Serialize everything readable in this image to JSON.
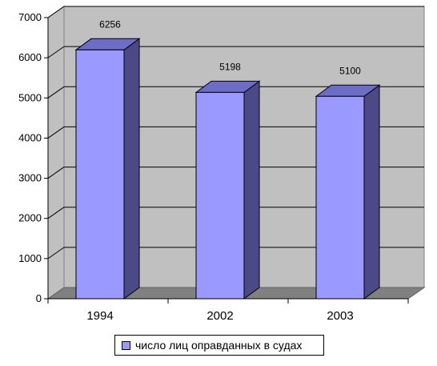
{
  "chart_data": {
    "type": "bar",
    "categories": [
      "1994",
      "2002",
      "2003"
    ],
    "series": [
      {
        "name": "число лиц оправданных в судах",
        "values": [
          6256,
          5198,
          5100
        ]
      }
    ],
    "data_labels": [
      "6256",
      "5198",
      "5100"
    ],
    "ylim": [
      0,
      7000
    ],
    "yticks": [
      "0",
      "1000",
      "2000",
      "3000",
      "4000",
      "5000",
      "6000",
      "7000"
    ],
    "grid": true,
    "legend_position": "bottom",
    "colors": {
      "bar_front": "#9999ff",
      "bar_side": "#4b4a86",
      "bar_top": "#6d6cc6",
      "wall": "#c0c0c0",
      "floor": "#808080"
    }
  }
}
